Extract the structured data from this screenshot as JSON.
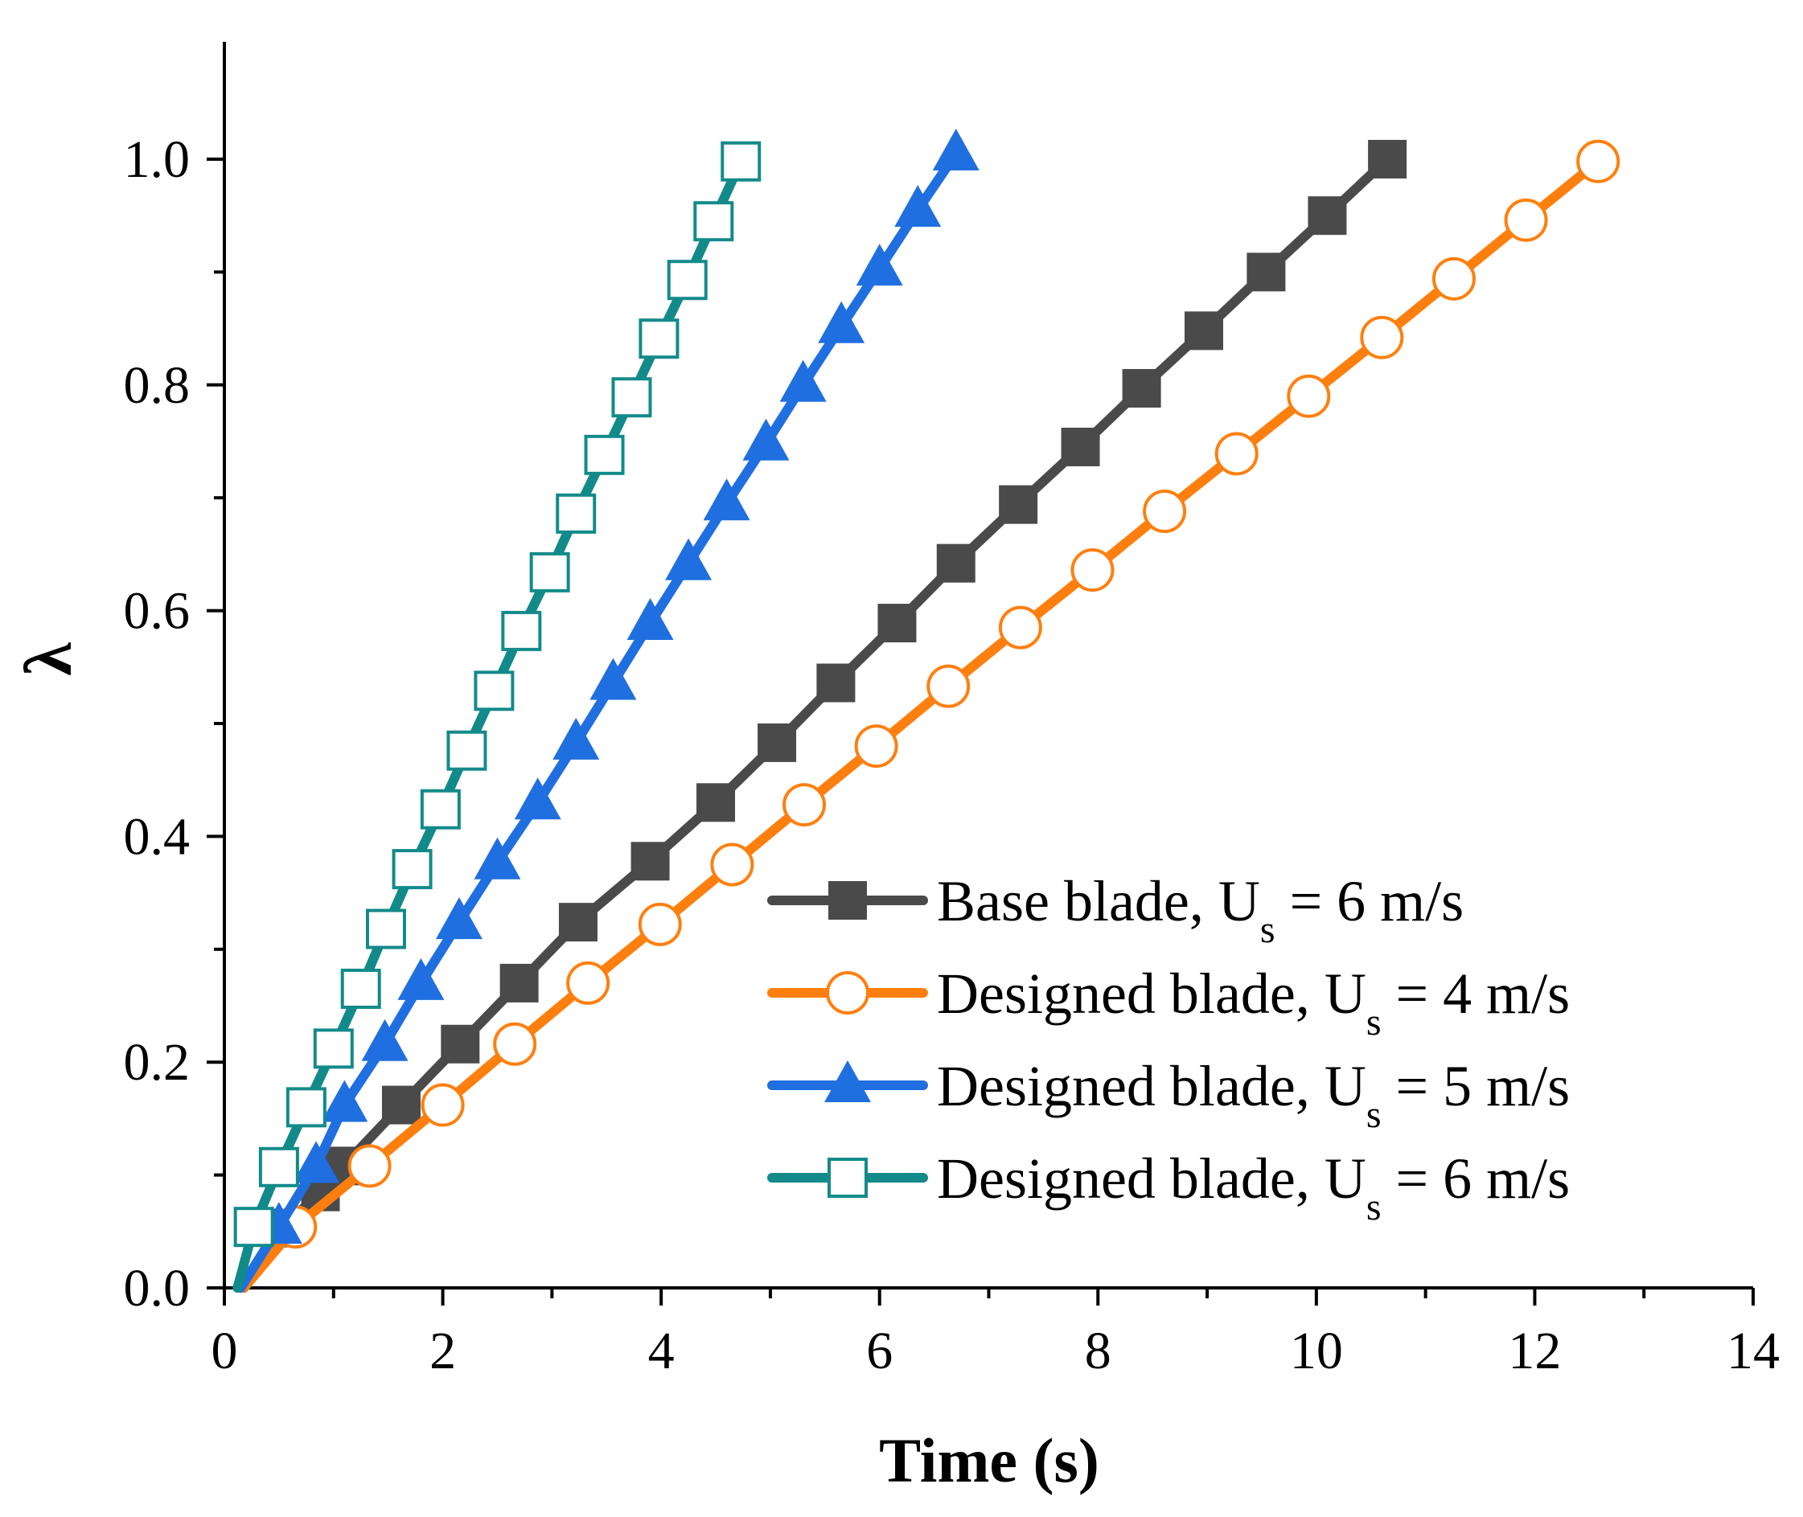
{
  "chart_data": {
    "type": "line",
    "title": "",
    "xlabel": "Time (s)",
    "ylabel": "λ",
    "xlim": [
      0,
      14
    ],
    "ylim": [
      0,
      1.1
    ],
    "xticks": [
      0,
      2,
      4,
      6,
      8,
      10,
      12,
      14
    ],
    "xtick_labels": [
      "0",
      "2",
      "4",
      "6",
      "8",
      "10",
      "12",
      "14"
    ],
    "yticks": [
      0.0,
      0.2,
      0.4,
      0.6,
      0.8,
      1.0
    ],
    "ytick_labels": [
      "0.0",
      "0.2",
      "0.4",
      "0.6",
      "0.8",
      "1.0"
    ],
    "grid": false,
    "legend_position": "bottom-right",
    "series": [
      {
        "name": "Base blade, U_s = 6 m/s",
        "legend": {
          "prefix": "Base blade, U",
          "sub": "s",
          "suffix": " = 6 m/s"
        },
        "color": "#4a4a4a",
        "marker": "square-filled",
        "x": [
          0.18,
          0.53,
          0.88,
          1.09,
          1.62,
          2.16,
          2.7,
          3.24,
          3.9,
          4.5,
          5.06,
          5.6,
          6.16,
          6.7,
          7.27,
          7.84,
          8.4,
          8.97,
          9.54,
          10.1,
          10.65
        ],
        "y": [
          0.0,
          0.053,
          0.085,
          0.108,
          0.162,
          0.216,
          0.27,
          0.324,
          0.378,
          0.43,
          0.483,
          0.536,
          0.589,
          0.642,
          0.694,
          0.745,
          0.797,
          0.848,
          0.9,
          0.95,
          1.0
        ]
      },
      {
        "name": "Designed blade, U_s = 4 m/s",
        "legend": {
          "prefix": "Designed blade, U",
          "sub": "s",
          "suffix": " = 4 m/s"
        },
        "color": "#ff7f0e",
        "marker": "circle-open",
        "x": [
          0.18,
          0.65,
          1.33,
          2.0,
          2.66,
          3.33,
          3.99,
          4.65,
          5.31,
          5.97,
          6.63,
          7.29,
          7.95,
          8.61,
          9.27,
          9.93,
          10.6,
          11.26,
          11.92,
          12.58
        ],
        "y": [
          0.0,
          0.054,
          0.108,
          0.162,
          0.216,
          0.27,
          0.322,
          0.375,
          0.428,
          0.48,
          0.533,
          0.585,
          0.636,
          0.688,
          0.739,
          0.79,
          0.842,
          0.894,
          0.946,
          0.998
        ]
      },
      {
        "name": "Designed blade, U_s = 5 m/s",
        "legend": {
          "prefix": "Designed blade, U",
          "sub": "s",
          "suffix": " = 5 m/s"
        },
        "color": "#1f6fe0",
        "marker": "triangle-filled",
        "x": [
          0.15,
          0.5,
          0.84,
          1.1,
          1.47,
          1.8,
          2.15,
          2.5,
          2.87,
          3.22,
          3.56,
          3.9,
          4.25,
          4.6,
          4.96,
          5.3,
          5.65,
          6.0,
          6.35,
          6.7
        ],
        "y": [
          0.0,
          0.054,
          0.108,
          0.162,
          0.216,
          0.27,
          0.324,
          0.377,
          0.43,
          0.483,
          0.536,
          0.589,
          0.642,
          0.695,
          0.748,
          0.8,
          0.852,
          0.903,
          0.955,
          1.005
        ]
      },
      {
        "name": "Designed blade, U_s = 6 m/s",
        "legend": {
          "prefix": "Designed blade, U",
          "sub": "s",
          "suffix": " = 6 m/s"
        },
        "color": "#138a8a",
        "marker": "square-open",
        "x": [
          0.12,
          0.27,
          0.5,
          0.75,
          1.0,
          1.25,
          1.48,
          1.72,
          1.98,
          2.22,
          2.47,
          2.72,
          2.98,
          3.22,
          3.48,
          3.73,
          3.98,
          4.24,
          4.48,
          4.73
        ],
        "y": [
          0.0,
          0.054,
          0.107,
          0.16,
          0.212,
          0.265,
          0.318,
          0.371,
          0.424,
          0.476,
          0.529,
          0.582,
          0.634,
          0.686,
          0.738,
          0.789,
          0.841,
          0.893,
          0.945,
          0.998
        ]
      }
    ]
  }
}
